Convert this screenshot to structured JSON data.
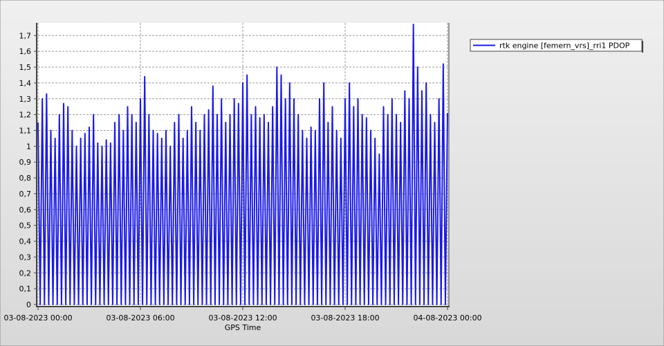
{
  "chart_data": {
    "type": "line",
    "xlabel": "GPS Time",
    "x": [
      0,
      0.125,
      0.25,
      0.375,
      0.5,
      0.625,
      0.75,
      0.875,
      1,
      1.125,
      1.25,
      1.375,
      1.5,
      1.625,
      1.75,
      1.875,
      2,
      2.125,
      2.25,
      2.375,
      2.5,
      2.625,
      2.75,
      2.875,
      3,
      3.125,
      3.25,
      3.375,
      3.5,
      3.625,
      3.75,
      3.875,
      4,
      4.125,
      4.25,
      4.375,
      4.5,
      4.625,
      4.75,
      4.875,
      5,
      5.125,
      5.25,
      5.375,
      5.5,
      5.625,
      5.75,
      5.875,
      6,
      6.125,
      6.25,
      6.375,
      6.5,
      6.625,
      6.75,
      6.875,
      7,
      7.125,
      7.25,
      7.375,
      7.5,
      7.625,
      7.75,
      7.875,
      8,
      8.125,
      8.25,
      8.375,
      8.5,
      8.625,
      8.75,
      8.875,
      9,
      9.125,
      9.25,
      9.375,
      9.5,
      9.625,
      9.75,
      9.875,
      10,
      10.125,
      10.25,
      10.375,
      10.5,
      10.625,
      10.75,
      10.875,
      11,
      11.125,
      11.25,
      11.375,
      11.5,
      11.625,
      11.75,
      11.875,
      12,
      12.125,
      12.25,
      12.375,
      12.5,
      12.625,
      12.75,
      12.875,
      13,
      13.125,
      13.25,
      13.375,
      13.5,
      13.625,
      13.75,
      13.875,
      14,
      14.125,
      14.25,
      14.375,
      14.5,
      14.625,
      14.75,
      14.875,
      15,
      15.125,
      15.25,
      15.375,
      15.5,
      15.625,
      15.75,
      15.875,
      16,
      16.125,
      16.25,
      16.375,
      16.5,
      16.625,
      16.75,
      16.875,
      17,
      17.125,
      17.25,
      17.375,
      17.5,
      17.625,
      17.75,
      17.875,
      18,
      18.125,
      18.25,
      18.375,
      18.5,
      18.625,
      18.75,
      18.875,
      19,
      19.125,
      19.25,
      19.375,
      19.5,
      19.625,
      19.75,
      19.875,
      20,
      20.125,
      20.25,
      20.375,
      20.5,
      20.625,
      20.75,
      20.875,
      21,
      21.125,
      21.25,
      21.375,
      21.5,
      21.625,
      21.75,
      21.875,
      22,
      22.125,
      22.25,
      22.375,
      22.5,
      22.625,
      22.75,
      22.875,
      23,
      23.125,
      23.25,
      23.375,
      23.5,
      23.625,
      23.75,
      23.875,
      24
    ],
    "series": [
      {
        "name": "rtk engine [femern_vrs]_rri1 PDOP",
        "color": "#1a1ae6",
        "values": [
          1.15,
          0,
          1.3,
          0,
          1.33,
          0,
          1.1,
          0,
          1.05,
          0,
          1.2,
          0,
          1.27,
          0,
          1.25,
          0,
          1.1,
          0,
          1.0,
          0,
          1.05,
          0,
          1.08,
          0,
          1.12,
          0,
          1.2,
          0,
          1.02,
          0,
          1.0,
          0,
          1.04,
          0,
          1.02,
          0,
          1.15,
          0,
          1.2,
          0,
          1.1,
          0,
          1.25,
          0,
          1.2,
          0,
          1.15,
          0,
          1.3,
          0,
          1.44,
          0,
          1.2,
          0,
          1.1,
          0,
          1.08,
          0,
          1.05,
          0,
          1.1,
          0,
          1.0,
          0,
          1.15,
          0,
          1.2,
          0,
          1.05,
          0,
          1.1,
          0,
          1.25,
          0,
          1.15,
          0,
          1.1,
          0,
          1.2,
          0,
          1.23,
          0,
          1.38,
          0,
          1.2,
          0,
          1.3,
          0,
          1.15,
          0,
          1.2,
          0,
          1.3,
          0,
          1.27,
          0,
          1.4,
          0,
          1.45,
          0,
          1.2,
          0,
          1.25,
          0,
          1.18,
          0,
          1.2,
          0,
          1.15,
          0,
          1.25,
          0,
          1.5,
          0,
          1.45,
          0,
          1.3,
          0,
          1.4,
          0,
          1.3,
          0,
          1.2,
          0,
          1.1,
          0,
          1.05,
          0,
          1.12,
          0,
          1.1,
          0,
          1.3,
          0,
          1.4,
          0,
          1.15,
          0,
          1.25,
          0,
          1.1,
          0,
          1.05,
          0,
          1.3,
          0,
          1.4,
          0,
          1.25,
          0,
          1.3,
          0,
          1.2,
          0,
          1.18,
          0,
          1.1,
          0,
          1.05,
          0,
          0.95,
          0,
          1.25,
          0,
          1.2,
          0,
          1.3,
          0,
          1.2,
          0,
          1.15,
          0,
          1.35,
          0,
          1.3,
          0,
          1.77,
          0,
          1.5,
          0,
          1.35,
          0,
          1.4,
          0,
          1.2,
          0,
          1.15,
          0,
          1.3,
          0,
          1.52,
          0,
          1.21
        ]
      }
    ],
    "xlim": [
      0,
      24
    ],
    "xticks": [
      {
        "value": 0,
        "label": "03-08-2023 00:00"
      },
      {
        "value": 6,
        "label": "03-08-2023 06:00"
      },
      {
        "value": 12,
        "label": "03-08-2023 12:00"
      },
      {
        "value": 18,
        "label": "03-08-2023 18:00"
      },
      {
        "value": 24,
        "label": "04-08-2023 00:00"
      }
    ],
    "ylim": [
      0,
      1.78
    ],
    "yticks": [
      0,
      {
        "value": 0.1,
        "label": "0,1"
      },
      {
        "value": 0.2,
        "label": "0,2"
      },
      {
        "value": 0.3,
        "label": "0,3"
      },
      {
        "value": 0.4,
        "label": "0,4"
      },
      {
        "value": 0.5,
        "label": "0,5"
      },
      {
        "value": 0.6,
        "label": "0,6"
      },
      {
        "value": 0.7,
        "label": "0,7"
      },
      {
        "value": 0.8,
        "label": "0,8"
      },
      {
        "value": 0.9,
        "label": "0,9"
      },
      1,
      {
        "value": 1.1,
        "label": "1,1"
      },
      {
        "value": 1.2,
        "label": "1,2"
      },
      {
        "value": 1.3,
        "label": "1,3"
      },
      {
        "value": 1.4,
        "label": "1,4"
      },
      {
        "value": 1.5,
        "label": "1,5"
      },
      {
        "value": 1.6,
        "label": "1,6"
      },
      {
        "value": 1.7,
        "label": "1,7"
      }
    ],
    "grid": true
  }
}
